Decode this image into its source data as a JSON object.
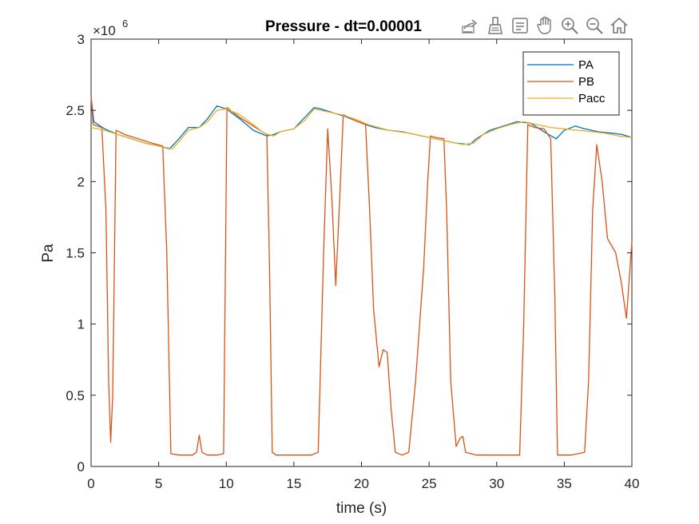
{
  "chart_data": {
    "type": "line",
    "title": "Pressure  - dt=0.00001",
    "xlabel": "time (s)",
    "ylabel": "Pa",
    "xlim": [
      0,
      40
    ],
    "ylim": [
      0,
      3000000
    ],
    "x_ticks": [
      0,
      5,
      10,
      15,
      20,
      25,
      30,
      35,
      40
    ],
    "x_tick_labels": [
      "0",
      "5",
      "10",
      "15",
      "20",
      "25",
      "30",
      "35",
      "40"
    ],
    "y_ticks": [
      0,
      500000,
      1000000,
      1500000,
      2000000,
      2500000,
      3000000
    ],
    "y_tick_labels": [
      "0",
      "0.5",
      "1",
      "1.5",
      "2",
      "2.5",
      "3"
    ],
    "y_exponent_base": "×10",
    "y_exponent_power": "6",
    "grid": true,
    "legend_position": "top-right",
    "series": [
      {
        "name": "PA",
        "color": "#0072bd",
        "points": [
          [
            0,
            2.6
          ],
          [
            0.2,
            2.42
          ],
          [
            1,
            2.37
          ],
          [
            2,
            2.33
          ],
          [
            3,
            2.3
          ],
          [
            4,
            2.27
          ],
          [
            5,
            2.25
          ],
          [
            5.8,
            2.23
          ],
          [
            6.5,
            2.3
          ],
          [
            7.2,
            2.38
          ],
          [
            8,
            2.38
          ],
          [
            8.6,
            2.44
          ],
          [
            9.3,
            2.53
          ],
          [
            10,
            2.51
          ],
          [
            11,
            2.44
          ],
          [
            12,
            2.36
          ],
          [
            13,
            2.32
          ],
          [
            13.5,
            2.33
          ],
          [
            14,
            2.35
          ],
          [
            15,
            2.37
          ],
          [
            15.8,
            2.45
          ],
          [
            16.5,
            2.52
          ],
          [
            17,
            2.51
          ],
          [
            18,
            2.48
          ],
          [
            18.7,
            2.46
          ],
          [
            19.5,
            2.43
          ],
          [
            20.3,
            2.4
          ],
          [
            21,
            2.38
          ],
          [
            22,
            2.36
          ],
          [
            23,
            2.35
          ],
          [
            24,
            2.33
          ],
          [
            25,
            2.31
          ],
          [
            26,
            2.29
          ],
          [
            27,
            2.27
          ],
          [
            28,
            2.26
          ],
          [
            28.5,
            2.3
          ],
          [
            29.5,
            2.36
          ],
          [
            30.5,
            2.39
          ],
          [
            31.5,
            2.42
          ],
          [
            32.5,
            2.41
          ],
          [
            33.5,
            2.35
          ],
          [
            34.4,
            2.3
          ],
          [
            35,
            2.36
          ],
          [
            35.8,
            2.39
          ],
          [
            36.5,
            2.37
          ],
          [
            37.5,
            2.35
          ],
          [
            38.5,
            2.34
          ],
          [
            39.3,
            2.33
          ],
          [
            40,
            2.31
          ]
        ]
      },
      {
        "name": "PB",
        "color": "#d95319",
        "points": [
          [
            0,
            2.6
          ],
          [
            0.15,
            2.4
          ],
          [
            0.8,
            2.38
          ],
          [
            1.1,
            1.8
          ],
          [
            1.3,
            0.6
          ],
          [
            1.45,
            0.17
          ],
          [
            1.6,
            0.5
          ],
          [
            1.85,
            2.36
          ],
          [
            2.5,
            2.33
          ],
          [
            3.5,
            2.3
          ],
          [
            4.5,
            2.27
          ],
          [
            5.3,
            2.25
          ],
          [
            5.6,
            1.5
          ],
          [
            5.9,
            0.09
          ],
          [
            6.5,
            0.08
          ],
          [
            7.5,
            0.08
          ],
          [
            7.8,
            0.1
          ],
          [
            8,
            0.22
          ],
          [
            8.2,
            0.1
          ],
          [
            8.6,
            0.08
          ],
          [
            9.3,
            0.08
          ],
          [
            9.8,
            0.09
          ],
          [
            10.05,
            2.52
          ],
          [
            11,
            2.45
          ],
          [
            12,
            2.39
          ],
          [
            13,
            2.33
          ],
          [
            13.2,
            1.4
          ],
          [
            13.4,
            0.1
          ],
          [
            13.7,
            0.08
          ],
          [
            15,
            0.08
          ],
          [
            16.3,
            0.08
          ],
          [
            16.8,
            0.1
          ],
          [
            17.2,
            1.5
          ],
          [
            17.5,
            2.37
          ],
          [
            17.8,
            1.9
          ],
          [
            18.1,
            1.27
          ],
          [
            18.4,
            1.9
          ],
          [
            18.65,
            2.47
          ],
          [
            19.5,
            2.43
          ],
          [
            20.3,
            2.4
          ],
          [
            20.6,
            1.8
          ],
          [
            20.9,
            1.1
          ],
          [
            21.3,
            0.7
          ],
          [
            21.6,
            0.82
          ],
          [
            21.9,
            0.8
          ],
          [
            22.2,
            0.4
          ],
          [
            22.5,
            0.1
          ],
          [
            23,
            0.08
          ],
          [
            23.5,
            0.1
          ],
          [
            24,
            0.6
          ],
          [
            24.6,
            1.4
          ],
          [
            24.9,
            2.0
          ],
          [
            25.1,
            2.32
          ],
          [
            25.5,
            2.31
          ],
          [
            26.1,
            2.3
          ],
          [
            26.3,
            1.8
          ],
          [
            26.6,
            0.6
          ],
          [
            27,
            0.14
          ],
          [
            27.3,
            0.2
          ],
          [
            27.5,
            0.21
          ],
          [
            27.7,
            0.1
          ],
          [
            28.5,
            0.08
          ],
          [
            30,
            0.08
          ],
          [
            31,
            0.08
          ],
          [
            31.7,
            0.08
          ],
          [
            32,
            1.0
          ],
          [
            32.3,
            2.4
          ],
          [
            32.8,
            2.38
          ],
          [
            33.5,
            2.37
          ],
          [
            34,
            2.3
          ],
          [
            34.3,
            1.2
          ],
          [
            34.5,
            0.08
          ],
          [
            35.5,
            0.08
          ],
          [
            36.5,
            0.1
          ],
          [
            36.8,
            0.6
          ],
          [
            37.1,
            1.8
          ],
          [
            37.4,
            2.26
          ],
          [
            37.8,
            2.0
          ],
          [
            38.2,
            1.6
          ],
          [
            38.8,
            1.5
          ],
          [
            39.2,
            1.3
          ],
          [
            39.6,
            1.04
          ],
          [
            40,
            1.58
          ]
        ]
      },
      {
        "name": "Pacc",
        "color": "#edb120",
        "points": [
          [
            0,
            2.38
          ],
          [
            1,
            2.36
          ],
          [
            2,
            2.33
          ],
          [
            3,
            2.3
          ],
          [
            4,
            2.27
          ],
          [
            5,
            2.25
          ],
          [
            6,
            2.23
          ],
          [
            6.5,
            2.28
          ],
          [
            7.2,
            2.36
          ],
          [
            8,
            2.38
          ],
          [
            8.6,
            2.42
          ],
          [
            9.3,
            2.5
          ],
          [
            10,
            2.51
          ],
          [
            11,
            2.47
          ],
          [
            12,
            2.4
          ],
          [
            12.8,
            2.34
          ],
          [
            13.5,
            2.32
          ],
          [
            14,
            2.35
          ],
          [
            15,
            2.37
          ],
          [
            15.8,
            2.43
          ],
          [
            16.5,
            2.51
          ],
          [
            17.5,
            2.49
          ],
          [
            18.5,
            2.47
          ],
          [
            19.5,
            2.44
          ],
          [
            20.5,
            2.4
          ],
          [
            22,
            2.36
          ],
          [
            23.5,
            2.34
          ],
          [
            25,
            2.31
          ],
          [
            26.5,
            2.28
          ],
          [
            27.5,
            2.26
          ],
          [
            28.3,
            2.27
          ],
          [
            29,
            2.33
          ],
          [
            30,
            2.37
          ],
          [
            31,
            2.4
          ],
          [
            32,
            2.42
          ],
          [
            33,
            2.4
          ],
          [
            34,
            2.38
          ],
          [
            35,
            2.37
          ],
          [
            36,
            2.36
          ],
          [
            37,
            2.35
          ],
          [
            38,
            2.34
          ],
          [
            39,
            2.32
          ],
          [
            40,
            2.31
          ]
        ]
      }
    ],
    "y_point_scale": 1000000
  },
  "toolbar": {
    "tools": [
      {
        "name": "export-icon"
      },
      {
        "name": "brush-icon"
      },
      {
        "name": "data-tip-icon"
      },
      {
        "name": "pan-hand-icon"
      },
      {
        "name": "zoom-in-icon"
      },
      {
        "name": "zoom-out-icon"
      },
      {
        "name": "home-icon"
      }
    ]
  }
}
